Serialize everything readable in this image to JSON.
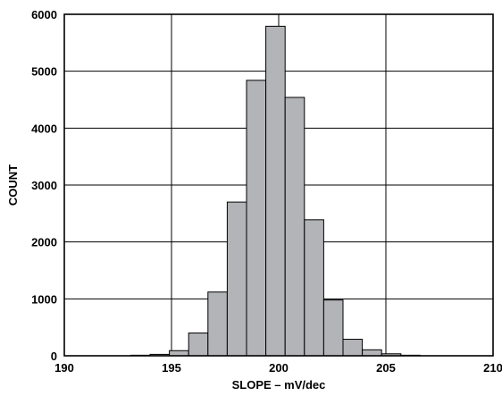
{
  "chart_data": {
    "type": "bar",
    "xlabel": "SLOPE – mV/dec",
    "ylabel": "COUNT",
    "xlim": [
      190,
      210
    ],
    "ylim": [
      0,
      6000
    ],
    "x_ticks": [
      "190",
      "195",
      "200",
      "205",
      "210"
    ],
    "y_ticks": [
      "0",
      "1000",
      "2000",
      "3000",
      "4000",
      "5000",
      "6000"
    ],
    "grid": true,
    "bin_width": 0.9,
    "bins": [
      {
        "x": 193.1,
        "count": 10
      },
      {
        "x": 194.0,
        "count": 25
      },
      {
        "x": 194.9,
        "count": 90
      },
      {
        "x": 195.8,
        "count": 400
      },
      {
        "x": 196.7,
        "count": 1120
      },
      {
        "x": 197.6,
        "count": 2700
      },
      {
        "x": 198.5,
        "count": 4840
      },
      {
        "x": 199.4,
        "count": 5790
      },
      {
        "x": 200.3,
        "count": 4540
      },
      {
        "x": 201.2,
        "count": 2390
      },
      {
        "x": 202.1,
        "count": 980
      },
      {
        "x": 203.0,
        "count": 290
      },
      {
        "x": 203.9,
        "count": 105
      },
      {
        "x": 204.8,
        "count": 35
      },
      {
        "x": 205.7,
        "count": 10
      }
    ],
    "colors": {
      "bar_fill": "#b3b4b8",
      "bar_stroke": "#000000",
      "grid": "#000000"
    }
  }
}
